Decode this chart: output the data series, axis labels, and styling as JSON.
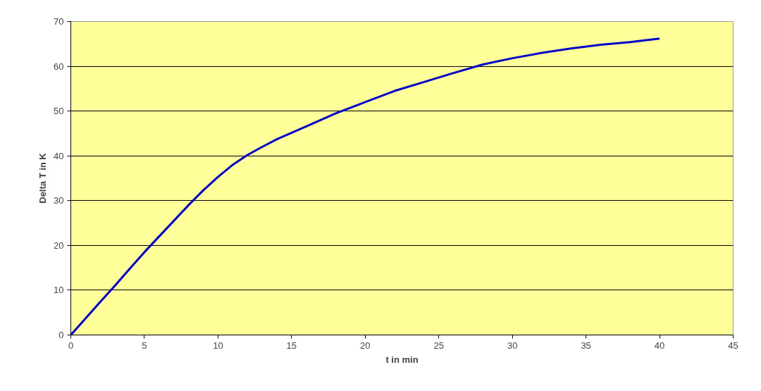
{
  "chart_data": {
    "type": "line",
    "xlabel": "t in min",
    "ylabel": "Delta T in K",
    "x": [
      0,
      1,
      2,
      3,
      4,
      5,
      6,
      7,
      8,
      9,
      10,
      11,
      12,
      13,
      14,
      16,
      18,
      20,
      22,
      24,
      26,
      28,
      30,
      32,
      34,
      36,
      38,
      40
    ],
    "series": [
      {
        "color": "#0000cc",
        "values": [
          0,
          3.7,
          7.4,
          11,
          14.8,
          18.5,
          22,
          25.5,
          29,
          32.3,
          35.3,
          38,
          40.2,
          42,
          43.7,
          46.6,
          49.5,
          52,
          54.5,
          56.5,
          58.5,
          60.4,
          61.8,
          63,
          64,
          64.8,
          65.4,
          66.2
        ]
      }
    ],
    "xlim": [
      0,
      45
    ],
    "xticks": [
      0,
      5,
      10,
      15,
      20,
      25,
      30,
      35,
      40,
      45
    ],
    "ylim": [
      0,
      70
    ],
    "yticks": [
      0,
      10,
      20,
      30,
      40,
      50,
      60,
      70
    ],
    "grid": "y",
    "marker": "none",
    "line_style": "solid"
  }
}
